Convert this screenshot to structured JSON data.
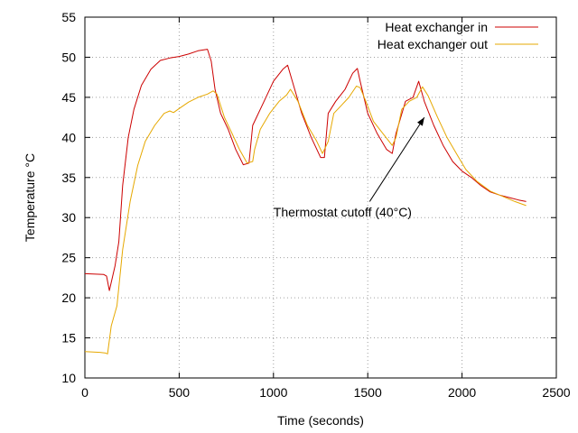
{
  "chart_data": {
    "type": "line",
    "title": "",
    "xlabel": "Time (seconds)",
    "ylabel": "Temperature °C",
    "xlim": [
      0,
      2500
    ],
    "ylim": [
      10,
      55
    ],
    "xticks": [
      0,
      500,
      1000,
      1500,
      2000,
      2500
    ],
    "yticks": [
      10,
      15,
      20,
      25,
      30,
      35,
      40,
      45,
      50,
      55
    ],
    "grid": true,
    "legend_position": "top-right",
    "series": [
      {
        "name": "Heat exchanger in",
        "color": "#cc0000",
        "x": [
          0,
          100,
          115,
          130,
          160,
          180,
          200,
          230,
          260,
          300,
          350,
          400,
          450,
          500,
          550,
          600,
          650,
          670,
          690,
          720,
          760,
          800,
          840,
          870,
          890,
          910,
          950,
          1000,
          1050,
          1075,
          1100,
          1150,
          1200,
          1250,
          1270,
          1290,
          1330,
          1380,
          1420,
          1445,
          1460,
          1500,
          1550,
          1600,
          1630,
          1650,
          1700,
          1740,
          1770,
          1800,
          1850,
          1900,
          1950,
          2000,
          2050,
          2100,
          2150,
          2200,
          2250,
          2300,
          2340
        ],
        "y": [
          23.0,
          22.9,
          22.7,
          20.9,
          24.0,
          27.0,
          34.0,
          40.0,
          43.5,
          46.5,
          48.5,
          49.6,
          49.9,
          50.1,
          50.4,
          50.8,
          51.0,
          49.5,
          46.0,
          43.0,
          41.0,
          38.5,
          36.6,
          36.8,
          41.5,
          42.5,
          44.5,
          47.0,
          48.5,
          49.0,
          47.0,
          43.0,
          40.0,
          37.5,
          37.5,
          43.0,
          44.5,
          46.0,
          48.0,
          48.6,
          47.0,
          43.0,
          40.5,
          38.5,
          38.0,
          40.5,
          44.5,
          45.0,
          47.0,
          44.5,
          41.5,
          39.0,
          37.0,
          35.8,
          35.0,
          34.0,
          33.2,
          32.8,
          32.5,
          32.2,
          32.0
        ]
      },
      {
        "name": "Heat exchanger out",
        "color": "#e6a800",
        "x": [
          0,
          80,
          110,
          120,
          140,
          170,
          200,
          240,
          280,
          320,
          370,
          420,
          450,
          470,
          500,
          550,
          600,
          650,
          680,
          700,
          740,
          780,
          820,
          860,
          890,
          900,
          930,
          980,
          1030,
          1070,
          1090,
          1130,
          1180,
          1230,
          1260,
          1290,
          1320,
          1360,
          1400,
          1440,
          1460,
          1490,
          1530,
          1580,
          1630,
          1650,
          1680,
          1720,
          1760,
          1790,
          1820,
          1870,
          1920,
          1970,
          2020,
          2080,
          2150,
          2220,
          2280,
          2340
        ],
        "y": [
          13.3,
          13.2,
          13.1,
          13.0,
          16.5,
          19.0,
          26.0,
          32.0,
          36.5,
          39.5,
          41.5,
          43.0,
          43.3,
          43.1,
          43.6,
          44.4,
          45.0,
          45.4,
          45.8,
          45.4,
          42.5,
          40.5,
          38.5,
          36.8,
          37.0,
          38.5,
          41.0,
          43.0,
          44.5,
          45.3,
          46.0,
          44.5,
          41.5,
          39.5,
          38.0,
          39.5,
          43.0,
          44.0,
          45.0,
          46.4,
          46.2,
          44.5,
          42.0,
          40.5,
          39.0,
          40.0,
          43.5,
          44.5,
          45.0,
          46.3,
          45.2,
          42.5,
          40.0,
          38.0,
          36.0,
          34.5,
          33.3,
          32.6,
          32.0,
          31.5
        ]
      }
    ],
    "annotation": {
      "text": "Thermostat cutoff (40°C)",
      "text_x": 1000,
      "text_y": 30,
      "arrow_from_x": 1510,
      "arrow_from_y": 32,
      "arrow_to_x": 1800,
      "arrow_to_y": 42.5
    }
  }
}
